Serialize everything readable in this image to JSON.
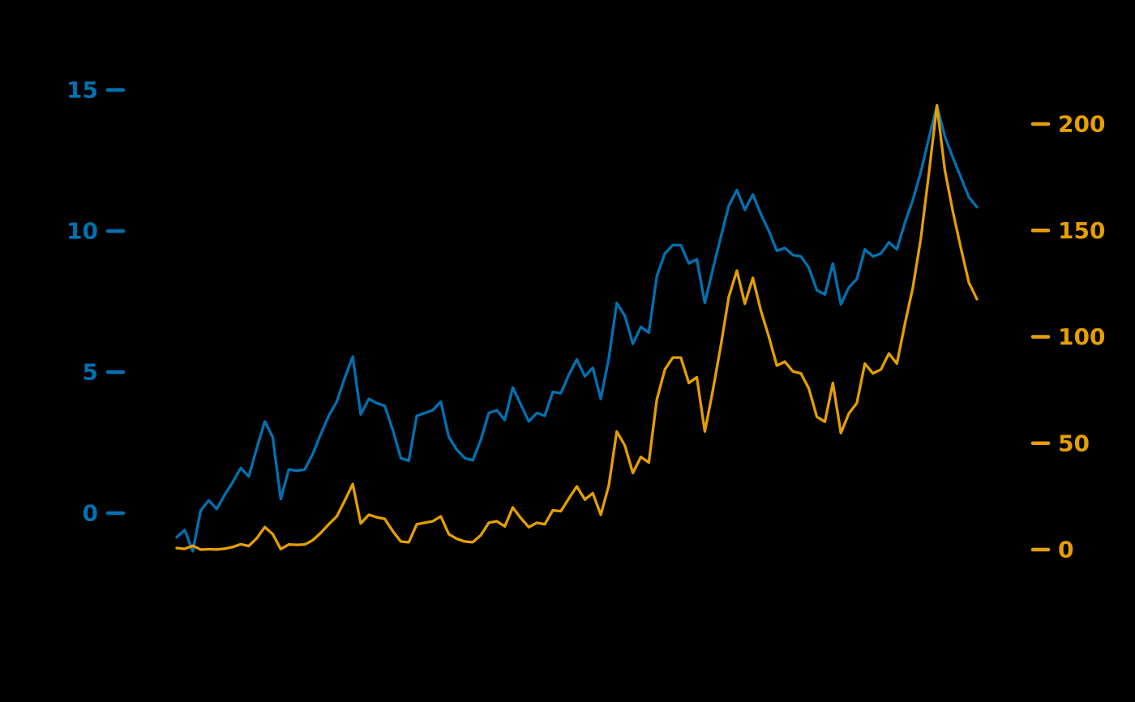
{
  "window": {
    "background_color": "#000000"
  },
  "chart_data": {
    "type": "line",
    "title": "",
    "xlabel": "",
    "ylabel": "",
    "x_tick_labels": [],
    "grid": false,
    "legend": null,
    "background": "#000000",
    "left_axis": {
      "ticks": [
        0,
        5,
        10,
        15
      ],
      "tick_label_color": "#0072B2",
      "tick_mark_color": "#0072B2",
      "approx_range": [
        -1.8,
        15.3
      ]
    },
    "right_axis": {
      "ticks": [
        0,
        50,
        100,
        150,
        200
      ],
      "tick_label_color": "#E69F00",
      "tick_mark_color": "#E69F00",
      "approx_range": [
        -16,
        215
      ]
    },
    "series": [
      {
        "name": "blue-left-series",
        "axis": "left",
        "color": "#0072B2",
        "values": [
          -0.85,
          -0.6,
          -1.35,
          0.1,
          0.45,
          0.15,
          0.65,
          1.1,
          1.6,
          1.3,
          2.3,
          3.25,
          2.7,
          0.5,
          1.55,
          1.5,
          1.55,
          2.1,
          2.8,
          3.45,
          3.95,
          4.8,
          5.55,
          3.5,
          4.05,
          3.9,
          3.8,
          2.95,
          1.95,
          1.85,
          3.45,
          3.55,
          3.65,
          3.95,
          2.7,
          2.25,
          1.95,
          1.87,
          2.6,
          3.55,
          3.65,
          3.3,
          4.45,
          3.85,
          3.25,
          3.55,
          3.45,
          4.3,
          4.25,
          4.9,
          5.45,
          4.85,
          5.15,
          4.05,
          5.5,
          7.45,
          7.0,
          6.0,
          6.6,
          6.4,
          8.4,
          9.2,
          9.5,
          9.5,
          8.85,
          9.0,
          7.45,
          8.65,
          9.8,
          10.9,
          11.45,
          10.75,
          11.3,
          10.6,
          10.0,
          9.3,
          9.4,
          9.15,
          9.1,
          8.7,
          7.9,
          7.75,
          8.85,
          7.4,
          8.0,
          8.3,
          9.35,
          9.1,
          9.2,
          9.6,
          9.35,
          10.3,
          11.1,
          12.1,
          13.3,
          14.45,
          13.35,
          12.6,
          11.9,
          11.2,
          10.85
        ]
      },
      {
        "name": "orange-right-series",
        "axis": "right",
        "color": "#E69F00",
        "values": [
          0.72,
          0.36,
          1.82,
          0.01,
          0.2,
          0.02,
          0.42,
          1.21,
          2.56,
          1.69,
          5.29,
          10.56,
          7.29,
          0.25,
          2.4,
          2.25,
          2.4,
          4.41,
          7.84,
          11.9,
          15.6,
          23.04,
          30.8,
          12.25,
          16.4,
          15.21,
          14.44,
          8.7,
          3.8,
          3.42,
          11.9,
          12.6,
          13.32,
          15.6,
          7.29,
          5.06,
          3.8,
          3.5,
          6.76,
          12.6,
          13.32,
          10.89,
          19.8,
          14.82,
          10.56,
          12.6,
          11.9,
          18.49,
          18.06,
          24.01,
          29.7,
          23.52,
          26.52,
          16.4,
          30.25,
          55.5,
          49.0,
          36.0,
          43.56,
          40.96,
          70.56,
          84.64,
          90.25,
          90.25,
          78.32,
          81.0,
          55.5,
          74.82,
          96.04,
          118.81,
          131.1,
          115.56,
          127.69,
          112.36,
          100.0,
          86.49,
          88.36,
          83.72,
          82.81,
          75.69,
          62.41,
          60.06,
          78.32,
          54.76,
          64.0,
          68.89,
          87.42,
          82.81,
          84.64,
          92.16,
          87.42,
          106.09,
          123.21,
          146.41,
          176.89,
          208.8,
          178.22,
          158.76,
          141.61,
          125.44,
          117.72
        ]
      }
    ]
  }
}
